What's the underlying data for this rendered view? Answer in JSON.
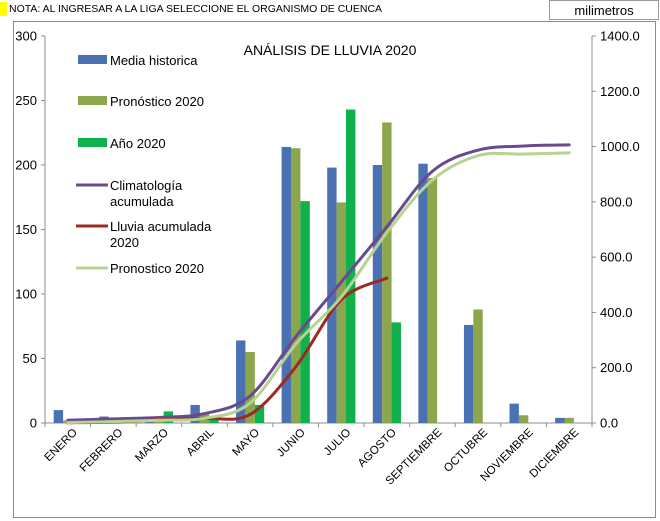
{
  "note": "NOTA: AL INGRESAR A LA LIGA SELECCIONE EL ORGANISMO DE CUENCA",
  "unit_label": "milimetros",
  "colors": {
    "media": "#4a72b2",
    "pronostico_bar": "#8ca64d",
    "anio": "#10b04c",
    "clim_line": "#6a4a8e",
    "lluvia_line": "#9c2a22",
    "pron_line": "#b5d392",
    "note_flag": "#ffff00"
  },
  "chart_data": {
    "type": "bar",
    "title": "ANÁLISIS DE LLUVIA 2020",
    "categories": [
      "ENERO",
      "FEBRERO",
      "MARZO",
      "ABRIL",
      "MAYO",
      "JUNIO",
      "JULIO",
      "AGOSTO",
      "SEPTIEMBRE",
      "OCTUBRE",
      "NOVIEMBRE",
      "DICIEMBRE"
    ],
    "left_axis": {
      "ylim": [
        0,
        300
      ],
      "ticks": [
        "0",
        "50",
        "100",
        "150",
        "200",
        "250",
        "300"
      ]
    },
    "right_axis": {
      "ylim": [
        0,
        1400
      ],
      "ticks": [
        "0.0",
        "200.0",
        "400.0",
        "600.0",
        "800.0",
        "1000.0",
        "1200.0",
        "1400.0"
      ]
    },
    "grid": false,
    "legend_position": "top-left",
    "series": [
      {
        "name": "Media historica",
        "kind": "bar",
        "axis": "left",
        "color": "#4a72b2",
        "values": [
          10,
          5,
          5,
          14,
          64,
          214,
          198,
          200,
          201,
          76,
          15,
          4
        ]
      },
      {
        "name": "Pronóstico 2020",
        "kind": "bar",
        "axis": "left",
        "color": "#8ca64d",
        "values": [
          2,
          3,
          5,
          7,
          55,
          213,
          171,
          233,
          190,
          88,
          6,
          4
        ]
      },
      {
        "name": "Año 2020",
        "kind": "bar",
        "axis": "left",
        "color": "#10b04c",
        "values": [
          1,
          2,
          9,
          5,
          14,
          172,
          243,
          78,
          null,
          null,
          null,
          null
        ]
      },
      {
        "name": "Climatología acumulada",
        "kind": "line",
        "axis": "right",
        "color": "#6a4a8e",
        "values": [
          10,
          15,
          20,
          34,
          98,
          312,
          510,
          710,
          911,
          987,
          1002,
          1006
        ]
      },
      {
        "name": "Lluvia acumulada 2020",
        "kind": "line",
        "axis": "right",
        "color": "#9c2a22",
        "values": [
          1,
          3,
          12,
          17,
          31,
          203,
          446,
          524,
          null,
          null,
          null,
          null
        ]
      },
      {
        "name": "Pronostico 2020",
        "kind": "line",
        "axis": "right",
        "color": "#b5d392",
        "values": [
          2,
          5,
          10,
          17,
          72,
          285,
          456,
          689,
          879,
          967,
          973,
          977
        ]
      }
    ]
  }
}
